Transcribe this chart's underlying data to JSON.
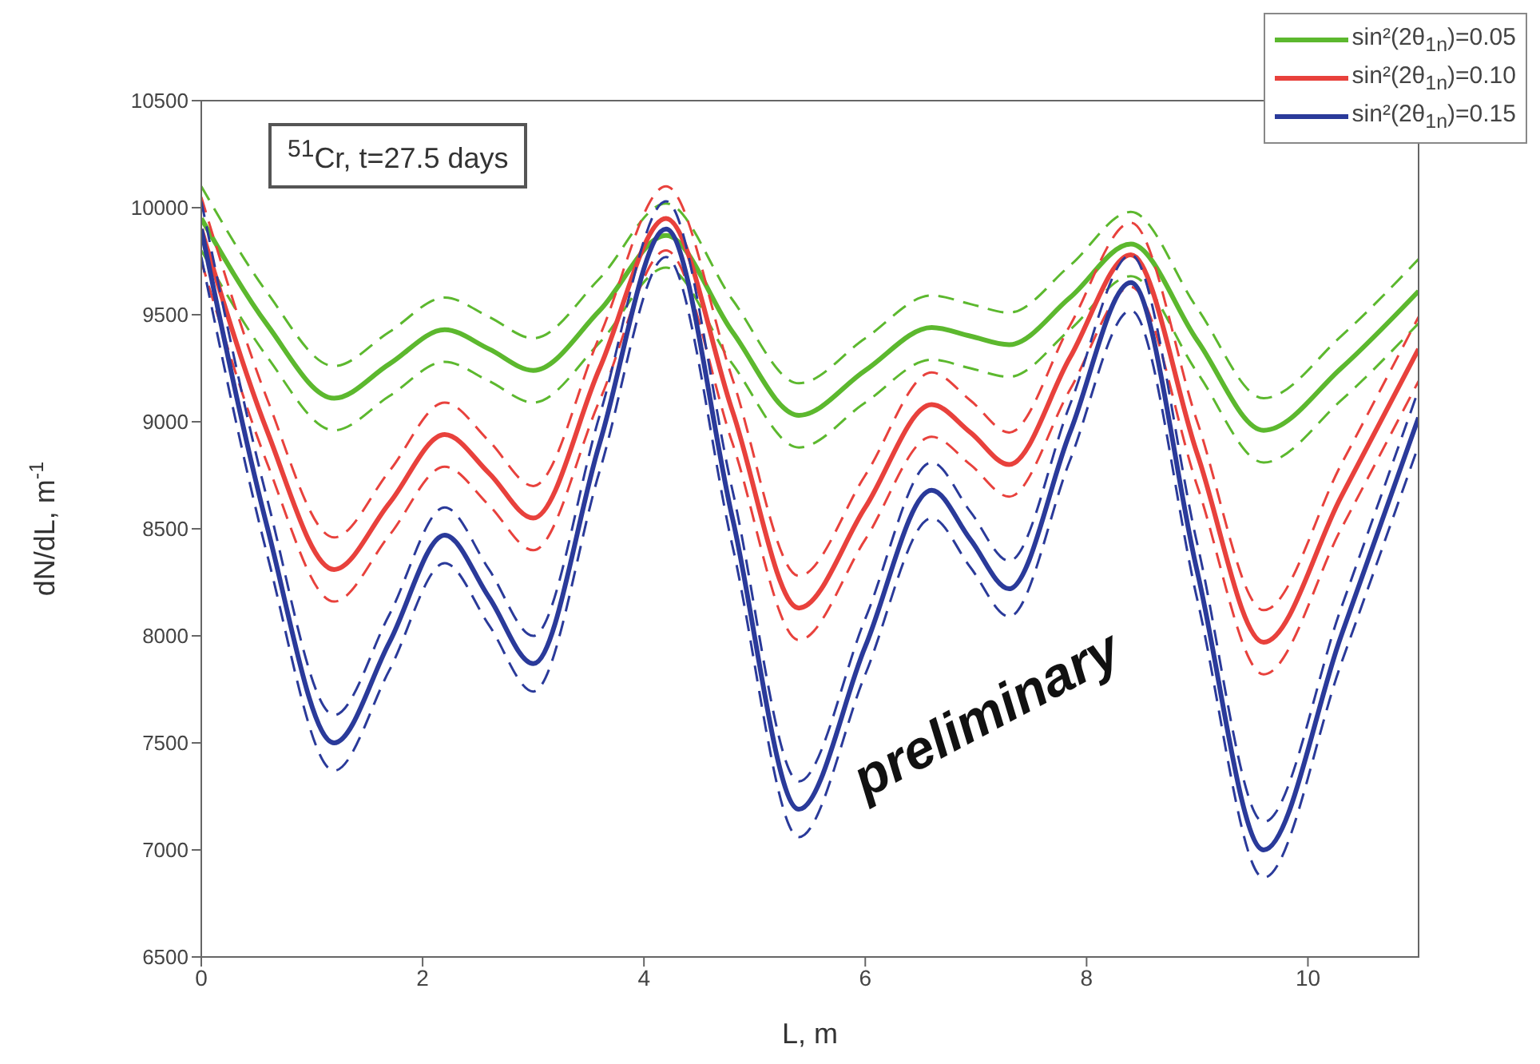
{
  "chart_data": {
    "type": "line",
    "xlabel": "L, m",
    "ylabel": "dN/dL, m$^{-1}$",
    "annotations": [
      "$^{51}$Cr, t=27.5 days",
      "preliminary"
    ],
    "x": [
      0,
      0.6,
      1.2,
      1.7,
      2.2,
      2.6,
      3.0,
      3.6,
      4.2,
      4.8,
      5.4,
      6.0,
      6.6,
      6.95,
      7.3,
      7.85,
      8.4,
      9.0,
      9.6,
      10.3,
      11
    ],
    "series": [
      {
        "name": "sin²(2θ$_{1n}$)=0.05",
        "color": "#5cb82e",
        "values": [
          9950,
          9450,
          9110,
          9270,
          9430,
          9340,
          9240,
          9520,
          9870,
          9420,
          9030,
          9240,
          9440,
          9400,
          9360,
          9580,
          9830,
          9380,
          8960,
          9250,
          9610
        ]
      },
      {
        "color": "#5cb82e",
        "line_style": "dashed",
        "values": [
          9800,
          9300,
          8960,
          9120,
          9280,
          9190,
          9090,
          9370,
          9720,
          9270,
          8880,
          9090,
          9290,
          9250,
          9210,
          9430,
          9680,
          9230,
          8810,
          9100,
          9460
        ]
      },
      {
        "color": "#5cb82e",
        "line_style": "dashed",
        "values": [
          10100,
          9600,
          9260,
          9420,
          9580,
          9490,
          9390,
          9670,
          10020,
          9570,
          9180,
          9390,
          9590,
          9550,
          9510,
          9730,
          9980,
          9530,
          9110,
          9400,
          9760
        ]
      },
      {
        "name": "sin²(2θ$_{1n}$)=0.10",
        "color": "#e8413c",
        "values": [
          9900,
          8950,
          8310,
          8620,
          8940,
          8760,
          8550,
          9250,
          9950,
          9050,
          8130,
          8600,
          9080,
          8950,
          8800,
          9300,
          9780,
          8850,
          7970,
          8650,
          9340
        ]
      },
      {
        "color": "#e8413c",
        "line_style": "dashed",
        "values": [
          9750,
          8800,
          8160,
          8470,
          8790,
          8610,
          8400,
          9100,
          9800,
          8900,
          7980,
          8450,
          8930,
          8800,
          8650,
          9150,
          9630,
          8700,
          7820,
          8500,
          9190
        ]
      },
      {
        "color": "#e8413c",
        "line_style": "dashed",
        "values": [
          10050,
          9100,
          8460,
          8770,
          9090,
          8910,
          8700,
          9400,
          10100,
          9200,
          8280,
          8750,
          9230,
          9100,
          8950,
          9450,
          9930,
          9000,
          8120,
          8800,
          9490
        ]
      },
      {
        "name": "sin²(2θ$_{1n}$)=0.15",
        "color": "#2a3a9a",
        "values": [
          9900,
          8500,
          7500,
          7970,
          8470,
          8180,
          7870,
          8900,
          9900,
          8550,
          7190,
          7950,
          8680,
          8450,
          8220,
          8950,
          9650,
          8300,
          7000,
          8000,
          9020
        ]
      },
      {
        "color": "#2a3a9a",
        "line_style": "dashed",
        "values": [
          9770,
          8370,
          7370,
          7840,
          8340,
          8050,
          7740,
          8770,
          9770,
          8420,
          7060,
          7820,
          8550,
          8320,
          8090,
          8820,
          9520,
          8170,
          6870,
          7870,
          8890
        ]
      },
      {
        "color": "#2a3a9a",
        "line_style": "dashed",
        "values": [
          10030,
          8630,
          7630,
          8100,
          8600,
          8310,
          8000,
          9030,
          10030,
          8680,
          7320,
          8080,
          8810,
          8580,
          8350,
          9080,
          9780,
          8430,
          7130,
          8130,
          9150
        ]
      }
    ],
    "xlim": [
      0,
      11
    ],
    "xticks": [
      0,
      2,
      4,
      6,
      8,
      10
    ],
    "ylim": [
      6500,
      10500
    ],
    "yticks": [
      6500,
      7000,
      7500,
      8000,
      8500,
      9000,
      9500,
      10000,
      10500
    ],
    "legend": "top right",
    "line_style": "solid"
  }
}
